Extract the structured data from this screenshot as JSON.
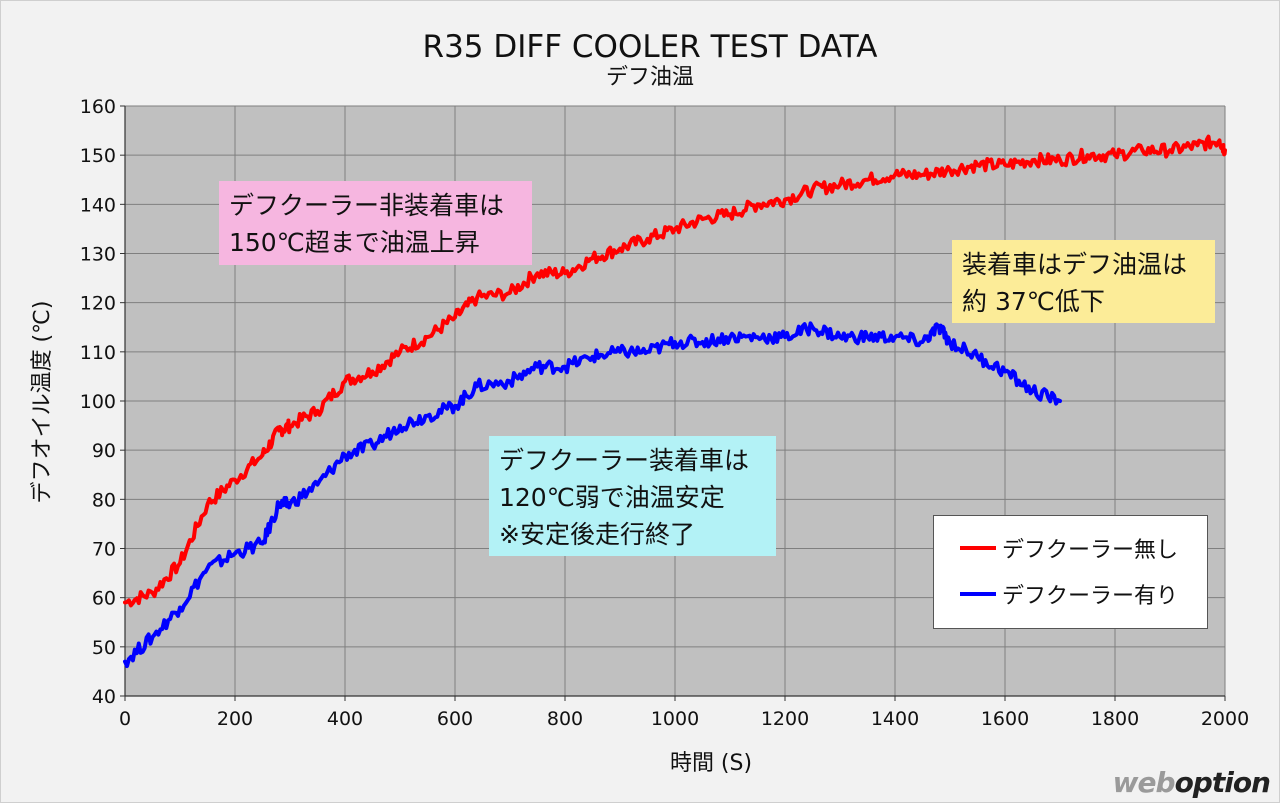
{
  "colors": {
    "background": "#f2f2f2",
    "plot_background": "#c0c0c0",
    "grid": "#7f7f7f",
    "series_no_cooler": "#ff0000",
    "series_with_cooler": "#0000ff",
    "annotation_pink": "#f6b6e0",
    "annotation_yellow": "#fcec98",
    "annotation_cyan": "#b3f2f6"
  },
  "annotations": {
    "pink": "デフクーラー非装着車は\n150℃超まで油温上昇",
    "yellow": "装着車はデフ油温は\n約 37℃低下",
    "cyan": "デフクーラー装着車は\n120℃弱で油温安定\n※安定後走行終了"
  },
  "watermark": {
    "part1": "web",
    "part2": "option"
  },
  "chart_data": {
    "type": "line",
    "title": "R35 DIFF COOLER TEST DATA",
    "subtitle": "デフ油温",
    "xlabel": "時間 (S)",
    "ylabel": "デフオイル温度 (℃)",
    "xlim": [
      0,
      2000
    ],
    "ylim": [
      40,
      160
    ],
    "xticks": [
      0,
      200,
      400,
      600,
      800,
      1000,
      1200,
      1400,
      1600,
      1800,
      2000
    ],
    "yticks": [
      40,
      50,
      60,
      70,
      80,
      90,
      100,
      110,
      120,
      130,
      140,
      150,
      160
    ],
    "grid": true,
    "legend_position": "bottom-right",
    "series": [
      {
        "name": "デフクーラー無し",
        "color": "#ff0000",
        "x": [
          0,
          50,
          100,
          150,
          200,
          250,
          280,
          300,
          350,
          400,
          450,
          500,
          550,
          600,
          640,
          700,
          750,
          800,
          850,
          900,
          950,
          1000,
          1050,
          1100,
          1150,
          1200,
          1250,
          1300,
          1350,
          1400,
          1450,
          1500,
          1550,
          1600,
          1650,
          1700,
          1750,
          1800,
          1850,
          1900,
          1950,
          1990,
          2000
        ],
        "values": [
          59,
          61,
          67,
          79,
          84,
          89,
          94,
          95,
          98,
          104,
          106,
          110,
          113,
          117,
          121,
          122,
          126,
          126,
          129,
          131,
          133,
          135,
          137,
          138,
          140,
          141,
          143,
          144,
          145,
          146,
          146,
          147,
          148,
          148,
          149,
          149,
          150,
          150,
          151,
          151,
          152,
          153,
          151
        ]
      },
      {
        "name": "デフクーラー有り",
        "color": "#0000ff",
        "x": [
          0,
          50,
          100,
          150,
          200,
          250,
          280,
          300,
          350,
          400,
          450,
          500,
          550,
          600,
          640,
          700,
          750,
          800,
          850,
          900,
          950,
          1000,
          1050,
          1100,
          1150,
          1200,
          1250,
          1300,
          1350,
          1400,
          1450,
          1480,
          1500,
          1550,
          1600,
          1650,
          1700
        ],
        "values": [
          47,
          52,
          58,
          66,
          69,
          71,
          79,
          79,
          83,
          89,
          91,
          95,
          97,
          99,
          103,
          104,
          107,
          107,
          109,
          110,
          110,
          112,
          112,
          113,
          113,
          113,
          115,
          113,
          113,
          113,
          112,
          115,
          112,
          109,
          106,
          102,
          100
        ]
      }
    ]
  }
}
